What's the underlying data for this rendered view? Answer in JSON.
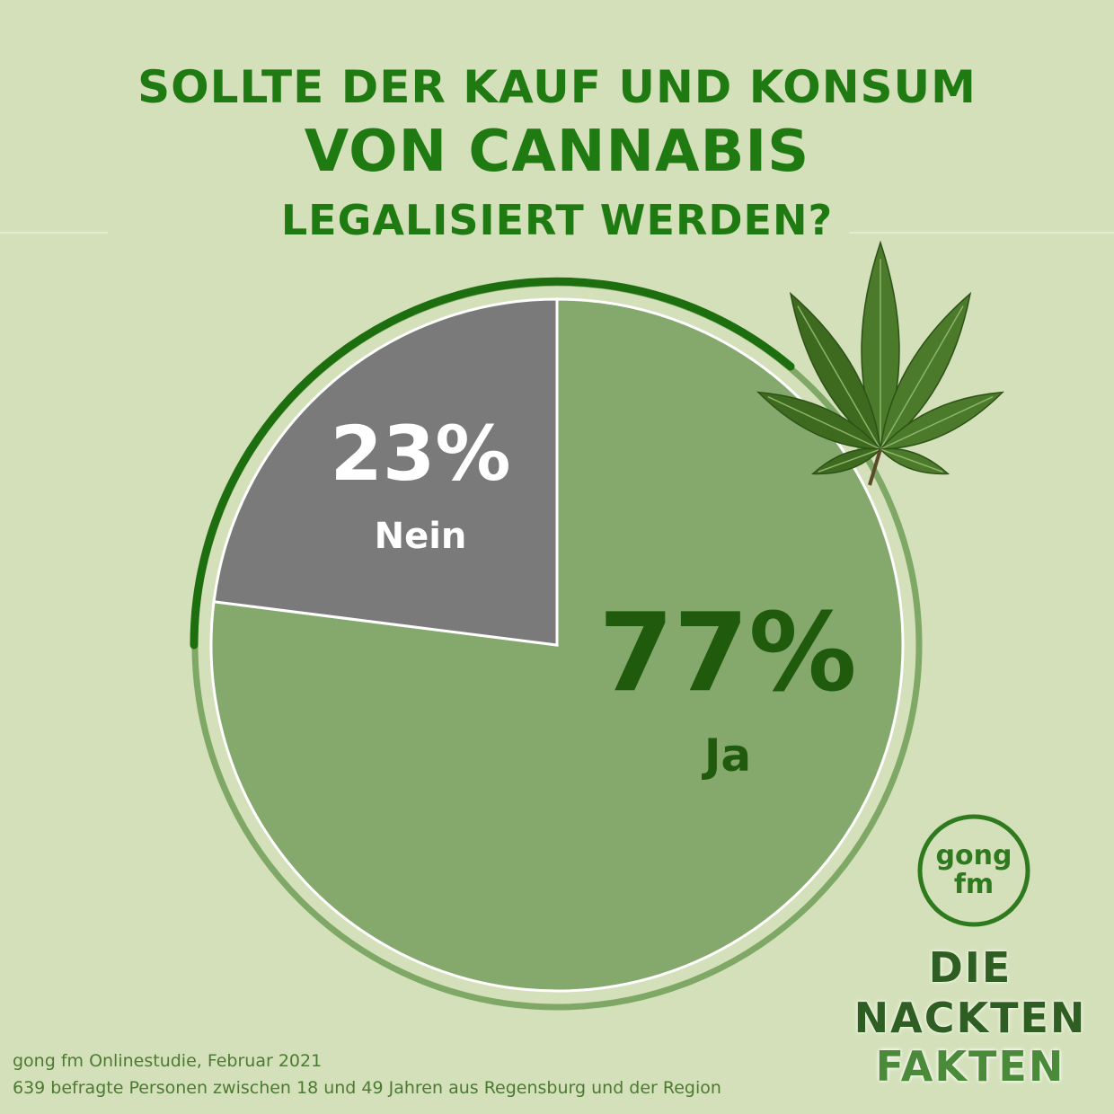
{
  "title": {
    "line1": "SOLLTE DER KAUF UND KONSUM",
    "line2": "VON CANNABIS",
    "line3": "LEGALISIERT WERDEN?"
  },
  "chart_data": {
    "type": "pie",
    "slices": [
      {
        "label": "Ja",
        "value": 77,
        "display": "77%",
        "color": "#85a96c",
        "text_color": "#1f5a0d"
      },
      {
        "label": "Nein",
        "value": 23,
        "display": "23%",
        "color": "#7a7a7a",
        "text_color": "#ffffff"
      }
    ]
  },
  "footer": {
    "source": "gong fm Onlinestudie, Februar 2021",
    "sample": "639 befragte Personen zwischen 18 und 49 Jahren aus Regensburg und der Region"
  },
  "brand": {
    "logo_line1": "gong",
    "logo_line2": "fm",
    "name_line1": "DIE",
    "name_line2": "NACKTEN",
    "name_line3": "FAKTEN"
  },
  "colors": {
    "background": "#d3e0b9",
    "title": "#1f7a12",
    "ring_dark": "#1c6e0e",
    "ring_light": "#7fa765",
    "leaf": "#3f6b22"
  },
  "icons": [
    "cannabis-leaf-icon",
    "gong-fm-logo"
  ]
}
